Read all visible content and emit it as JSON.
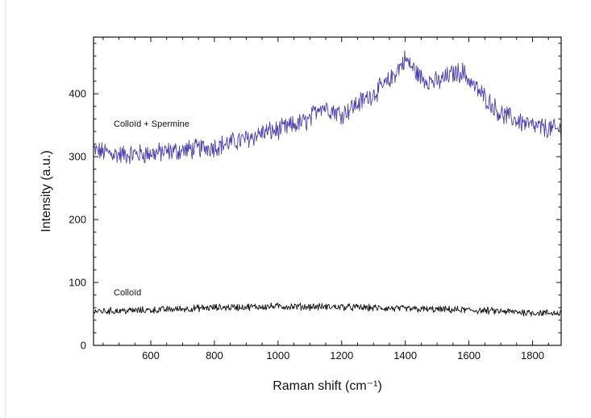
{
  "chart_data": {
    "type": "line",
    "title": "",
    "xlabel": "Raman shift (cm⁻¹)",
    "ylabel": "Intensity (a.u.)",
    "xlim": [
      420,
      1890
    ],
    "ylim": [
      0,
      490
    ],
    "x_ticks": [
      600,
      800,
      1000,
      1200,
      1400,
      1600,
      1800
    ],
    "y_ticks": [
      0,
      100,
      200,
      300,
      400
    ],
    "grid": false,
    "legend": "none",
    "annotations": [
      {
        "text": "Colloïd + Spermine",
        "series": 0
      },
      {
        "text": "Colloïd",
        "series": 1
      }
    ],
    "series": [
      {
        "name": "Colloïd + Spermine",
        "color": "#4b3fae",
        "noise": 14,
        "x": [
          420,
          500,
          600,
          700,
          800,
          900,
          950,
          1000,
          1100,
          1130,
          1200,
          1300,
          1350,
          1400,
          1450,
          1500,
          1550,
          1580,
          1620,
          1700,
          1800,
          1890
        ],
        "y": [
          310,
          303,
          305,
          310,
          316,
          328,
          338,
          342,
          358,
          382,
          368,
          400,
          420,
          455,
          425,
          418,
          432,
          435,
          410,
          368,
          348,
          342
        ]
      },
      {
        "name": "Colloïd",
        "color": "#111111",
        "noise": 5,
        "x": [
          420,
          600,
          800,
          1000,
          1200,
          1400,
          1600,
          1800,
          1890
        ],
        "y": [
          54,
          56,
          60,
          62,
          61,
          58,
          56,
          52,
          51
        ]
      }
    ]
  }
}
